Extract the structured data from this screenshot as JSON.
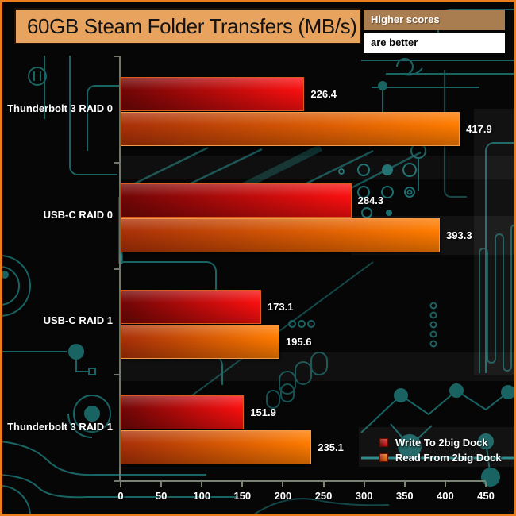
{
  "header": {
    "title": "60GB Steam Folder Transfers (MB/s)",
    "badge_top": "Higher scores",
    "badge_bottom": "are better"
  },
  "chart_data": {
    "type": "bar",
    "orientation": "horizontal",
    "title": "60GB Steam Folder Transfers (MB/s)",
    "categories": [
      "Thunderbolt 3 RAID 0",
      "USB-C RAID 0",
      "USB-C RAID 1",
      "Thunderbolt 3 RAID 1"
    ],
    "series": [
      {
        "name": "Write To 2big Dock",
        "values": [
          226.4,
          284.3,
          173.1,
          151.9
        ],
        "gradient": [
          "#710606",
          "#fb0f0f"
        ],
        "border": "#d85c1e"
      },
      {
        "name": "Read From 2big Dock",
        "values": [
          417.9,
          393.3,
          195.6,
          235.1
        ],
        "gradient": [
          "#a93008",
          "#ff7c00"
        ],
        "border": "#f09a4a"
      }
    ],
    "xlabel": "",
    "ylabel": "",
    "xlim": [
      0,
      450
    ],
    "x_ticks": [
      0,
      50,
      100,
      150,
      200,
      250,
      300,
      350,
      400,
      450
    ],
    "value_labels": true,
    "grid": false,
    "legend_position": "bottom-right"
  },
  "style": {
    "frame_border": "#ee7d1b",
    "background": "#060606",
    "circuit_trace": "#1c6e6e",
    "title_bg": "#e8a35e",
    "badge_top_bg": "#a97d50",
    "badge_bottom_bg": "#ffffff",
    "axis_color": "#7a8474",
    "label_color": "#ffffff"
  }
}
